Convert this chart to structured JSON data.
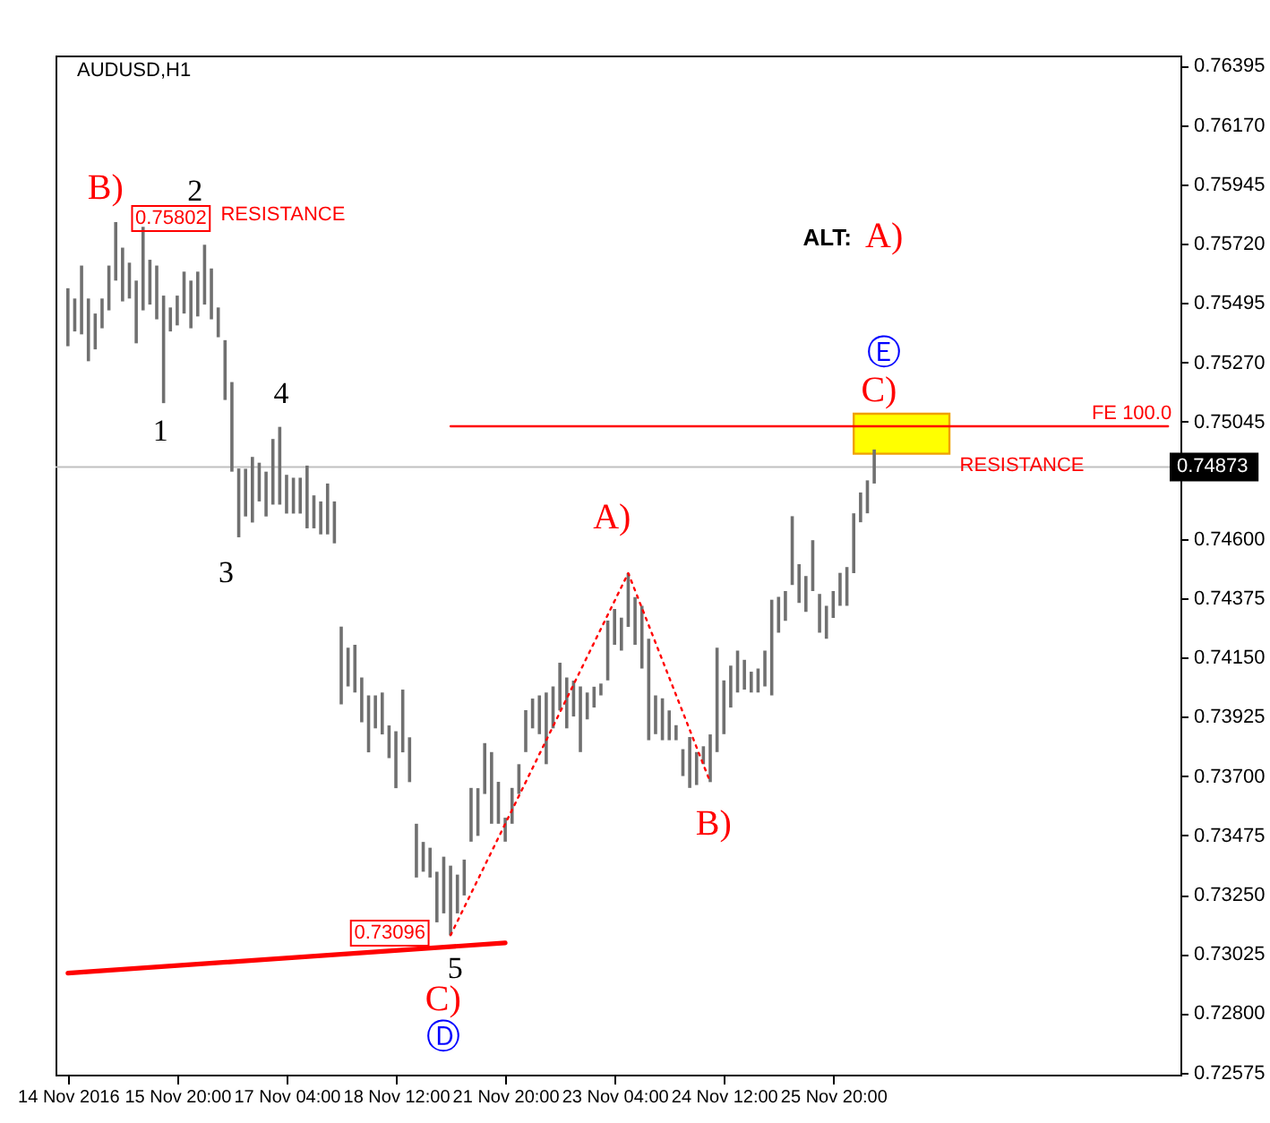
{
  "chart_data": {
    "type": "bar",
    "title": "AUDUSD,H1",
    "categories": [
      "14 Nov 2016",
      null,
      null,
      null,
      null,
      null,
      null,
      null,
      null,
      null,
      null,
      null,
      null,
      null,
      null,
      null,
      "15 Nov 20:00",
      null,
      null,
      null,
      null,
      null,
      null,
      null,
      null,
      null,
      null,
      null,
      null,
      null,
      null,
      null,
      "17 Nov 04:00",
      null,
      null,
      null,
      null,
      null,
      null,
      null,
      null,
      null,
      null,
      null,
      null,
      null,
      null,
      null,
      "18 Nov 12:00",
      null,
      null,
      null,
      null,
      null,
      null,
      null,
      null,
      null,
      null,
      null,
      null,
      null,
      null,
      null,
      "21 Nov 20:00",
      null,
      null,
      null,
      null,
      null,
      null,
      null,
      null,
      null,
      null,
      null,
      null,
      null,
      null,
      null,
      "23 Nov 04:00",
      null,
      null,
      null,
      null,
      null,
      null,
      null,
      null,
      null,
      null,
      null,
      null,
      null,
      null,
      null,
      "24 Nov 12:00",
      null,
      null,
      null,
      null,
      null,
      null,
      null,
      null,
      null,
      null,
      null,
      null,
      null,
      null,
      null,
      "25 Nov 20:00",
      null,
      null,
      null,
      null,
      null,
      null,
      null,
      null,
      null,
      null,
      null,
      null,
      null,
      null,
      null,
      null,
      null,
      null,
      null,
      null,
      null,
      null,
      null,
      null,
      null,
      null,
      null,
      null,
      null,
      null,
      null,
      null,
      null,
      null,
      null,
      null,
      null,
      null,
      null,
      null,
      null,
      null,
      null,
      null,
      null,
      null,
      null,
      null,
      null
    ],
    "ylim": [
      0.72567,
      0.76434
    ],
    "yticks": [
      0.76395,
      {
        "value": 0.7617,
        "label": "0.76170"
      },
      0.75945,
      {
        "value": 0.7572,
        "label": "0.75720"
      },
      0.75495,
      {
        "value": 0.7527,
        "label": "0.75270"
      },
      0.75045,
      {
        "value": 0.746,
        "label": "0.74600"
      },
      0.74375,
      {
        "value": 0.7415,
        "label": "0.74150"
      },
      0.73925,
      {
        "value": 0.737,
        "label": "0.73700"
      },
      0.73475,
      {
        "value": 0.7325,
        "label": "0.73250"
      },
      0.73025,
      {
        "value": 0.728,
        "label": "0.72800"
      },
      0.72575
    ],
    "grid": false,
    "series": [
      {
        "color": "#707070",
        "base": [
          0.75331,
          0.75387,
          0.75376,
          0.75274,
          0.75319,
          0.75399,
          0.75467,
          0.7558,
          0.75501,
          0.75512,
          0.75342,
          0.75467,
          0.75489,
          0.75433,
          0.75115,
          0.75387,
          0.7541,
          0.75455,
          0.75399,
          0.75444,
          0.75489,
          0.75433,
          0.75365,
          0.75127,
          0.74855,
          0.74606,
          0.74685,
          0.74662,
          0.74742,
          0.74685,
          0.7473,
          0.7473,
          0.74696,
          0.74696,
          0.74696,
          0.7464,
          0.7464,
          0.74617,
          0.74617,
          0.74583,
          0.73972,
          0.7404,
          0.74017,
          0.73904,
          0.7379,
          0.73881,
          0.73858,
          0.73768,
          0.73654,
          0.7379,
          0.73677,
          0.73315,
          0.73337,
          0.73315,
          0.73145,
          0.73179,
          0.73096,
          0.73179,
          0.73247,
          0.73451,
          0.73473,
          0.73632,
          0.73519,
          0.73519,
          0.73451,
          0.73519,
          0.73632,
          0.73791,
          0.73881,
          0.73859,
          0.73745,
          0.73881,
          0.73949,
          0.73881,
          0.73926,
          0.73791,
          0.73915,
          0.7396,
          0.74006,
          0.74063,
          0.74198,
          0.74176,
          0.74266,
          0.74198,
          0.74108,
          0.73836,
          0.73859,
          0.73836,
          0.73836,
          0.73836,
          0.737,
          0.73655,
          0.73666,
          0.73745,
          0.73677,
          0.73791,
          0.73859,
          0.7396,
          0.74017,
          0.74028,
          0.74017,
          0.74017,
          0.7404,
          0.74006,
          0.74244,
          0.74289,
          0.74425,
          0.74357,
          0.74323,
          0.74402,
          0.74244,
          0.74221,
          0.743,
          0.74346,
          0.74346,
          0.7447,
          0.74663,
          0.74697,
          0.7481,
          null,
          null,
          null,
          null,
          null,
          null,
          null,
          null,
          null,
          null,
          null,
          null,
          null,
          null,
          null,
          null,
          null,
          null,
          null,
          null,
          null,
          null,
          null,
          null,
          null,
          null,
          null,
          null,
          null,
          null,
          null,
          null,
          null,
          null,
          null,
          null,
          null,
          null,
          null,
          null,
          null,
          null,
          null
        ],
        "values": [
          0.0022,
          0.00125,
          0.00261,
          0.00238,
          0.00136,
          0.00113,
          0.0017,
          0.00222,
          0.00204,
          0.00136,
          0.00238,
          0.00317,
          0.0017,
          0.00204,
          0.00408,
          0.00091,
          0.00113,
          0.00159,
          0.00181,
          0.0017,
          0.00227,
          0.00193,
          0.00113,
          0.00227,
          0.0034,
          0.00261,
          0.00181,
          0.00249,
          0.00147,
          0.0017,
          0.00249,
          0.00295,
          0.00147,
          0.00136,
          0.00136,
          0.00238,
          0.00125,
          0.00125,
          0.00193,
          0.00159,
          0.00295,
          0.00147,
          0.00181,
          0.0017,
          0.00216,
          0.00125,
          0.00159,
          0.00124,
          0.00216,
          0.00238,
          0.0017,
          0.00204,
          0.00113,
          0.00113,
          0.00192,
          0.00215,
          0.00264,
          0.00147,
          0.00136,
          0.00204,
          0.00181,
          0.00193,
          0.00272,
          0.00159,
          0.00091,
          0.00136,
          0.00113,
          0.00159,
          0.00113,
          0.00147,
          0.00272,
          0.00159,
          0.00181,
          0.00193,
          0.00136,
          0.00249,
          0.00102,
          0.00079,
          0.00045,
          0.00227,
          0.00136,
          0.00125,
          0.00204,
          0.00181,
          0.00238,
          0.00385,
          0.00147,
          0.00159,
          0.00113,
          0.00057,
          0.00102,
          0.00193,
          0.00125,
          0.00068,
          0.00181,
          0.00396,
          0.00204,
          0.00159,
          0.00159,
          0.00113,
          0.00079,
          0.00091,
          0.00136,
          0.00363,
          0.00136,
          0.00113,
          0.00261,
          0.00147,
          0.00136,
          0.00193,
          0.00147,
          0.00125,
          0.00102,
          0.00125,
          0.00147,
          0.00227,
          0.00113,
          0.00125,
          0.00129,
          null,
          null,
          null,
          null,
          null,
          null,
          null,
          null,
          null,
          null,
          null,
          null,
          null,
          null,
          null,
          null,
          null,
          null,
          null,
          null,
          null,
          null,
          null,
          null,
          null,
          null,
          null,
          null,
          null,
          null,
          null,
          null,
          null,
          null,
          null,
          null,
          null,
          null,
          null,
          null,
          null,
          null,
          null
        ]
      },
      {
        "type": "line",
        "color": "#ff0000",
        "line_style": "solid",
        "values": [
          0.72952,
          null,
          null,
          null,
          null,
          null,
          null,
          null,
          null,
          null,
          null,
          null,
          null,
          null,
          null,
          null,
          null,
          null,
          null,
          null,
          null,
          null,
          null,
          null,
          null,
          null,
          null,
          null,
          null,
          null,
          null,
          null,
          null,
          null,
          null,
          null,
          null,
          null,
          null,
          null,
          null,
          null,
          null,
          null,
          null,
          null,
          null,
          null,
          null,
          null,
          null,
          null,
          null,
          null,
          null,
          null,
          null,
          null,
          null,
          null,
          null,
          null,
          null,
          null,
          0.73067,
          null,
          null,
          null,
          null,
          null,
          null,
          null,
          null,
          null,
          null,
          null,
          null,
          null,
          null,
          null,
          null,
          null,
          null,
          null,
          null,
          null,
          null,
          null,
          null,
          null,
          null,
          null,
          null,
          null,
          null,
          null,
          null,
          null,
          null,
          null,
          null,
          null,
          null,
          null,
          null,
          null,
          null,
          null,
          null,
          null,
          null,
          null,
          null,
          null,
          null,
          null,
          null,
          null,
          null,
          null,
          null,
          null,
          null,
          null,
          null,
          null,
          null,
          null,
          null,
          null,
          null,
          null,
          null,
          null,
          null,
          null,
          null,
          null,
          null,
          null,
          null,
          null,
          null,
          null,
          null,
          null,
          null,
          null,
          null,
          null,
          null,
          null,
          null,
          null,
          null,
          null,
          null,
          null,
          null,
          null,
          null,
          null
        ]
      },
      {
        "type": "line",
        "color": "#ff0000",
        "line_style": "dotted",
        "values": [
          null,
          null,
          null,
          null,
          null,
          null,
          null,
          null,
          null,
          null,
          null,
          null,
          null,
          null,
          null,
          null,
          null,
          null,
          null,
          null,
          null,
          null,
          null,
          null,
          null,
          null,
          null,
          null,
          null,
          null,
          null,
          null,
          null,
          null,
          null,
          null,
          null,
          null,
          null,
          null,
          null,
          null,
          null,
          null,
          null,
          null,
          null,
          null,
          null,
          null,
          null,
          null,
          null,
          null,
          null,
          null,
          0.73096,
          null,
          null,
          null,
          null,
          null,
          null,
          null,
          null,
          null,
          null,
          null,
          null,
          null,
          null,
          null,
          null,
          null,
          null,
          null,
          null,
          null,
          null,
          null,
          null,
          null,
          0.7447,
          null,
          null,
          null,
          null,
          null,
          null,
          null,
          null,
          null,
          null,
          null,
          0.73677,
          null,
          null,
          null,
          null,
          null,
          null,
          null,
          null,
          null,
          null,
          null,
          null,
          null,
          null,
          null,
          null,
          null,
          null,
          null,
          null,
          null,
          null,
          null,
          null,
          null,
          null,
          null,
          null,
          null,
          null,
          null,
          null,
          null,
          null,
          null,
          null,
          null,
          null,
          null,
          null,
          null,
          null,
          null,
          null,
          null,
          null,
          null,
          null,
          null,
          null,
          null,
          null,
          null,
          null,
          null,
          null,
          null,
          null,
          null,
          null,
          null,
          null,
          null,
          null,
          null,
          null,
          null
        ]
      },
      {
        "type": "line",
        "name": "FE 100.0",
        "color": "#ff0000",
        "line_style": "solid",
        "values": [
          null,
          null,
          null,
          null,
          null,
          null,
          null,
          null,
          null,
          null,
          null,
          null,
          null,
          null,
          null,
          null,
          null,
          null,
          null,
          null,
          null,
          null,
          null,
          null,
          null,
          null,
          null,
          null,
          null,
          null,
          null,
          null,
          null,
          null,
          null,
          null,
          null,
          null,
          null,
          null,
          null,
          null,
          null,
          null,
          null,
          null,
          null,
          null,
          null,
          null,
          null,
          null,
          null,
          null,
          null,
          null,
          0.75027,
          null,
          null,
          null,
          null,
          null,
          null,
          null,
          null,
          null,
          null,
          null,
          null,
          null,
          null,
          null,
          null,
          null,
          null,
          null,
          null,
          null,
          null,
          null,
          null,
          null,
          null,
          null,
          null,
          null,
          null,
          null,
          null,
          null,
          null,
          null,
          null,
          null,
          null,
          null,
          null,
          null,
          null,
          null,
          null,
          null,
          null,
          null,
          null,
          null,
          null,
          null,
          null,
          null,
          null,
          null,
          null,
          null,
          null,
          null,
          null,
          null,
          null,
          null,
          null,
          null,
          null,
          null,
          null,
          null,
          null,
          null,
          null,
          null,
          null,
          null,
          null,
          null,
          null,
          null,
          null,
          null,
          null,
          null,
          null,
          null,
          null,
          null,
          null,
          null,
          null,
          null,
          null,
          null,
          null,
          null,
          null,
          null,
          null,
          null,
          null,
          null,
          null,
          null,
          null,
          0.75027
        ]
      },
      {
        "type": "area",
        "color": "#ffff00",
        "values": [
          null,
          null,
          null,
          null,
          null,
          null,
          null,
          null,
          null,
          null,
          null,
          null,
          null,
          null,
          null,
          null,
          null,
          null,
          null,
          null,
          null,
          null,
          null,
          null,
          null,
          null,
          null,
          null,
          null,
          null,
          null,
          null,
          null,
          null,
          null,
          null,
          null,
          null,
          null,
          null,
          null,
          null,
          null,
          null,
          null,
          null,
          null,
          null,
          null,
          null,
          null,
          null,
          null,
          null,
          null,
          null,
          null,
          null,
          null,
          null,
          null,
          null,
          null,
          null,
          null,
          null,
          null,
          null,
          null,
          null,
          null,
          null,
          null,
          null,
          null,
          null,
          null,
          null,
          null,
          null,
          null,
          null,
          null,
          null,
          null,
          null,
          null,
          null,
          null,
          null,
          null,
          null,
          null,
          null,
          null,
          null,
          null,
          null,
          null,
          null,
          null,
          null,
          null,
          null,
          null,
          null,
          null,
          null,
          null,
          null,
          null,
          null,
          null,
          null,
          null,
          null,
          null,
          null,
          null,
          null,
          null,
          null,
          null,
          null,
          null,
          null,
          null,
          null,
          null,
          null,
          null,
          null,
          null,
          null,
          null,
          null,
          null,
          null,
          null,
          null,
          null,
          null,
          null,
          null,
          null,
          null,
          null,
          null,
          null,
          null,
          null,
          null,
          null,
          null,
          null,
          null,
          null,
          null,
          null,
          null,
          null,
          null
        ],
        "upper": [
          null,
          null,
          null,
          null,
          null,
          null,
          null,
          null,
          null,
          null,
          null,
          null,
          null,
          null,
          null,
          null,
          null,
          null,
          null,
          null,
          null,
          null,
          null,
          null,
          null,
          null,
          null,
          null,
          null,
          null,
          null,
          null,
          null,
          null,
          null,
          null,
          null,
          null,
          null,
          null,
          null,
          null,
          null,
          null,
          null,
          null,
          null,
          null,
          null,
          null,
          null,
          null,
          null,
          null,
          null,
          null,
          null,
          null,
          null,
          null,
          null,
          null,
          null,
          null,
          null,
          null,
          null,
          null,
          null,
          null,
          null,
          null,
          null,
          null,
          null,
          null,
          null,
          null,
          null,
          null,
          null,
          null,
          null,
          null,
          null,
          null,
          null,
          null,
          null,
          null,
          null,
          null,
          null,
          null,
          null,
          null,
          null,
          null,
          null,
          null,
          null,
          null,
          null,
          null,
          null,
          null,
          null,
          null,
          null,
          null,
          null,
          null,
          null,
          null,
          null,
          0.75075,
          null,
          null,
          null,
          null,
          null,
          null,
          null,
          null,
          null,
          null,
          null,
          null,
          null,
          0.75075,
          null,
          null,
          null,
          null,
          null,
          null,
          null,
          null,
          null,
          null,
          null,
          null,
          null,
          null,
          null,
          null,
          null,
          null,
          null,
          null,
          null,
          null,
          null,
          null,
          null,
          null,
          null,
          null,
          null,
          null,
          null,
          null
        ],
        "lower": [
          null,
          null,
          null,
          null,
          null,
          null,
          null,
          null,
          null,
          null,
          null,
          null,
          null,
          null,
          null,
          null,
          null,
          null,
          null,
          null,
          null,
          null,
          null,
          null,
          null,
          null,
          null,
          null,
          null,
          null,
          null,
          null,
          null,
          null,
          null,
          null,
          null,
          null,
          null,
          null,
          null,
          null,
          null,
          null,
          null,
          null,
          null,
          null,
          null,
          null,
          null,
          null,
          null,
          null,
          null,
          null,
          null,
          null,
          null,
          null,
          null,
          null,
          null,
          null,
          null,
          null,
          null,
          null,
          null,
          null,
          null,
          null,
          null,
          null,
          null,
          null,
          null,
          null,
          null,
          null,
          null,
          null,
          null,
          null,
          null,
          null,
          null,
          null,
          null,
          null,
          null,
          null,
          null,
          null,
          null,
          null,
          null,
          null,
          null,
          null,
          null,
          null,
          null,
          null,
          null,
          null,
          null,
          null,
          null,
          null,
          null,
          null,
          null,
          null,
          null,
          0.74923,
          null,
          null,
          null,
          null,
          null,
          null,
          null,
          null,
          null,
          null,
          null,
          null,
          null,
          0.74923,
          null,
          null,
          null,
          null,
          null,
          null,
          null,
          null,
          null,
          null,
          null,
          null,
          null,
          null,
          null,
          null,
          null,
          null,
          null,
          null,
          null,
          null,
          null,
          null,
          null,
          null,
          null,
          null,
          null,
          null,
          null,
          null
        ]
      }
    ],
    "ref_lines": [
      {
        "axis": "y",
        "value": 0.74873,
        "label": "0.74873",
        "color": "#c0c0c0"
      }
    ],
    "annotations": [
      "B)",
      "0.75802",
      "2",
      "RESISTANCE",
      "1",
      "4",
      "3",
      "5",
      "C)",
      "Ⓓ",
      "0.73096",
      "A)",
      "B)",
      "C)",
      "Ⓔ",
      "ALT:",
      "A)",
      "RESISTANCE"
    ]
  }
}
